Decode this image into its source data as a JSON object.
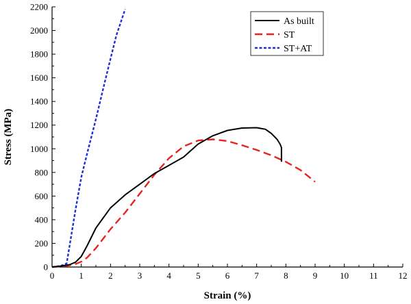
{
  "chart_data": {
    "type": "line",
    "title": "",
    "xlabel": "Strain (%)",
    "ylabel": "Stress (MPa)",
    "xlim": [
      0,
      12
    ],
    "ylim": [
      0,
      2200
    ],
    "xticks": [
      "0",
      "1",
      "2",
      "3",
      "4",
      "5",
      "6",
      "7",
      "8",
      "9",
      "10",
      "11",
      "12"
    ],
    "yticks": [
      "0",
      "200",
      "400",
      "600",
      "800",
      "1000",
      "1200",
      "1400",
      "1600",
      "1800",
      "2000",
      "2200"
    ],
    "grid": false,
    "legend_position": "top-right",
    "series": [
      {
        "name": "As built",
        "color": "#000000",
        "dash": "solid",
        "x": [
          0,
          0.3,
          0.6,
          0.8,
          1.0,
          1.2,
          1.5,
          2.0,
          2.5,
          3.0,
          3.5,
          4.0,
          4.5,
          5.0,
          5.5,
          6.0,
          6.5,
          7.0,
          7.3,
          7.5,
          7.7,
          7.8,
          7.85,
          7.85
        ],
        "y": [
          0,
          8,
          20,
          40,
          90,
          180,
          330,
          500,
          610,
          700,
          790,
          860,
          930,
          1040,
          1110,
          1155,
          1175,
          1178,
          1165,
          1130,
          1080,
          1040,
          1010,
          890
        ]
      },
      {
        "name": "ST",
        "color": "#e8231f",
        "dash": "dashed",
        "x": [
          0,
          0.5,
          0.8,
          1.0,
          1.2,
          1.5,
          2.0,
          2.5,
          3.0,
          3.5,
          4.0,
          4.5,
          5.0,
          5.5,
          6.0,
          6.5,
          7.0,
          7.5,
          8.0,
          8.5,
          9.0
        ],
        "y": [
          0,
          10,
          25,
          45,
          80,
          160,
          320,
          460,
          620,
          780,
          920,
          1020,
          1070,
          1080,
          1065,
          1030,
          990,
          945,
          890,
          820,
          720
        ]
      },
      {
        "name": "ST+AT",
        "color": "#1f2fd6",
        "dash": "dotted",
        "x": [
          0,
          0.3,
          0.5,
          0.6,
          0.8,
          1.0,
          1.2,
          1.5,
          1.8,
          2.0,
          2.2,
          2.5
        ],
        "y": [
          0,
          10,
          30,
          180,
          480,
          760,
          960,
          1250,
          1560,
          1760,
          1960,
          2180
        ]
      }
    ]
  }
}
